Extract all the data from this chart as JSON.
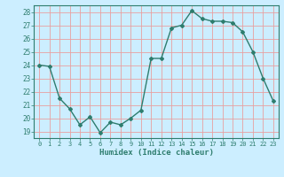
{
  "x": [
    0,
    1,
    2,
    3,
    4,
    5,
    6,
    7,
    8,
    9,
    10,
    11,
    12,
    13,
    14,
    15,
    16,
    17,
    18,
    19,
    20,
    21,
    22,
    23
  ],
  "y": [
    24,
    23.9,
    21.5,
    20.7,
    19.5,
    20.1,
    18.9,
    19.7,
    19.5,
    20.0,
    20.6,
    24.5,
    24.5,
    26.8,
    27.0,
    28.1,
    27.5,
    27.3,
    27.3,
    27.2,
    26.5,
    25.0,
    23.0,
    21.3
  ],
  "xlabel": "Humidex (Indice chaleur)",
  "xlim": [
    -0.5,
    23.5
  ],
  "ylim": [
    18.5,
    28.5
  ],
  "yticks": [
    19,
    20,
    21,
    22,
    23,
    24,
    25,
    26,
    27,
    28
  ],
  "xticks": [
    0,
    1,
    2,
    3,
    4,
    5,
    6,
    7,
    8,
    9,
    10,
    11,
    12,
    13,
    14,
    15,
    16,
    17,
    18,
    19,
    20,
    21,
    22,
    23
  ],
  "line_color": "#2e7d6e",
  "marker": "D",
  "marker_size": 2.0,
  "bg_color": "#cceeff",
  "grid_color": "#e8a0a0",
  "axes_color": "#2e7d6e",
  "tick_label_color": "#2e7d6e",
  "xlabel_color": "#2e7d6e",
  "line_width": 1.0
}
